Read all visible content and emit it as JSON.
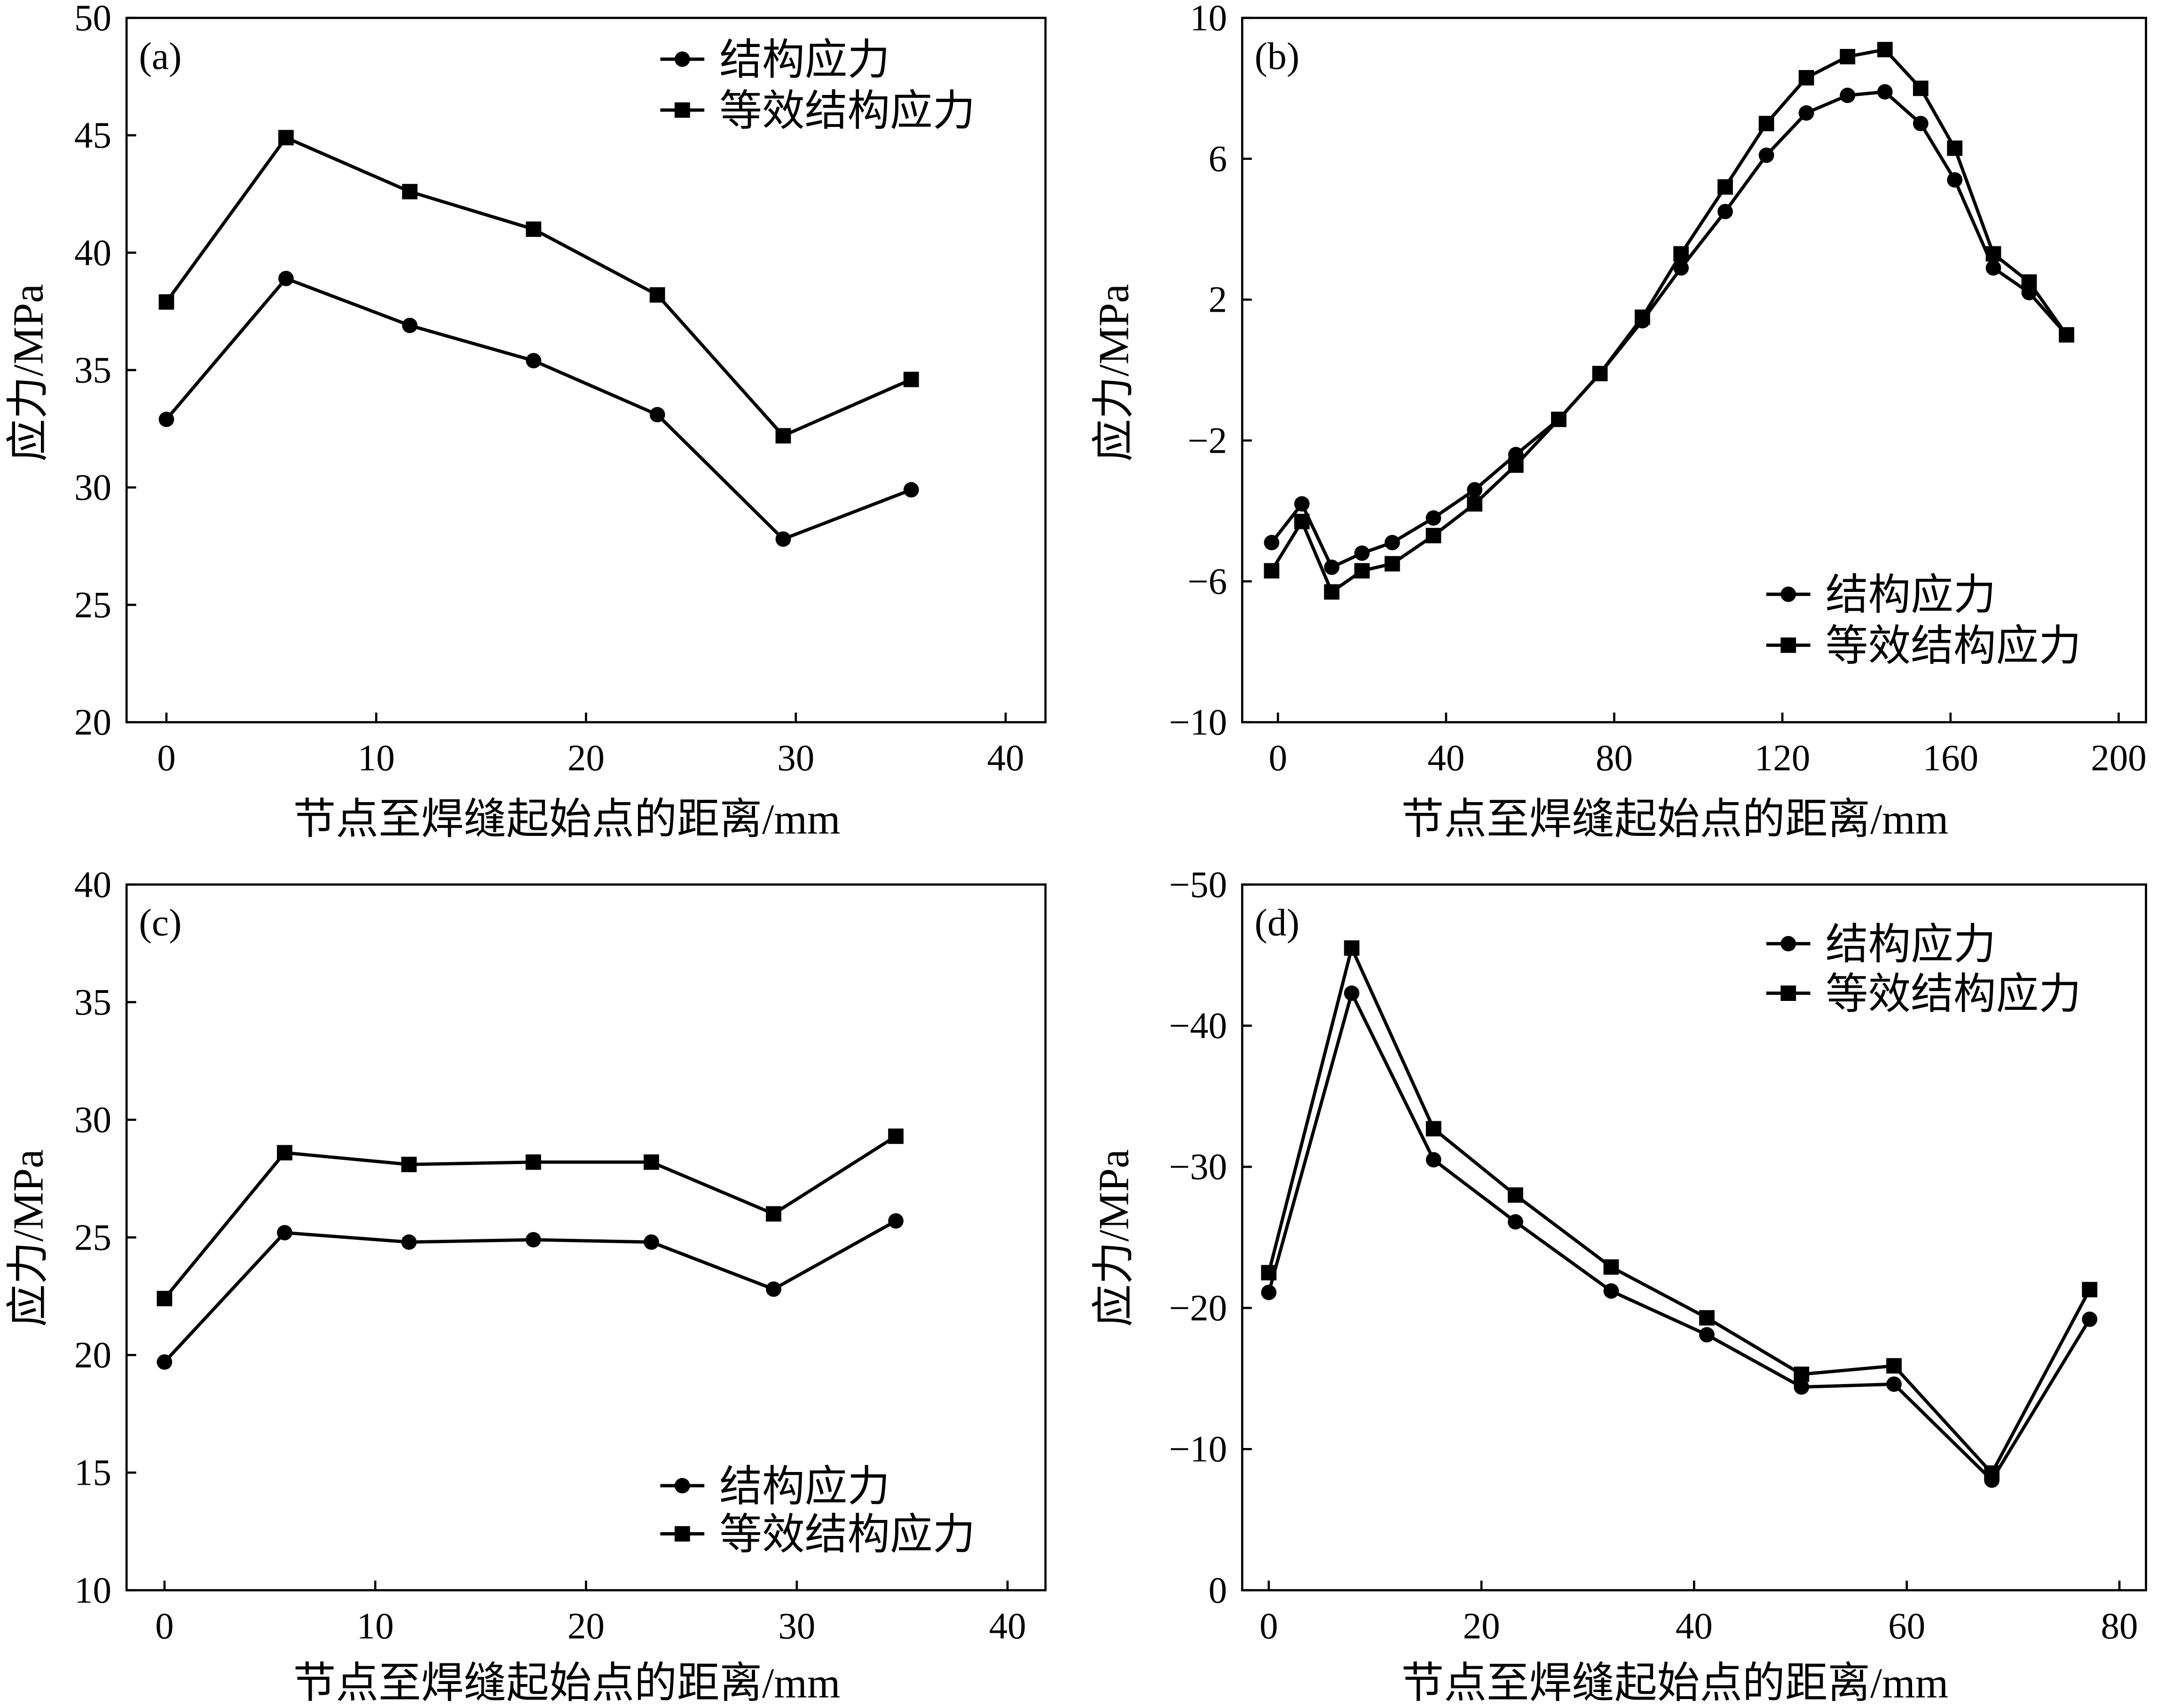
{
  "colors": {
    "ink": "#000000",
    "paper": "#ffffff"
  },
  "chart_data": [
    {
      "panel": "(a)",
      "type": "line",
      "xlabel": "节点至焊缝起始点的距离/mm",
      "ylabel": "应力/MPa",
      "xlim": [
        -1.9,
        41.9
      ],
      "ylim": [
        20,
        50
      ],
      "xticks": [
        "0",
        "10",
        "20",
        "30",
        "40"
      ],
      "yticks": [
        "20",
        "25",
        "30",
        "35",
        "40",
        "45",
        "50"
      ],
      "legend_position": "top-right",
      "x": [
        0,
        5.7,
        11.6,
        17.5,
        23.4,
        29.4,
        35.5
      ],
      "series": [
        {
          "name": "结构应力",
          "marker": "circle",
          "y": [
            32.9,
            38.9,
            36.9,
            35.4,
            33.1,
            27.8,
            29.9
          ]
        },
        {
          "name": "等效结构应力",
          "marker": "square",
          "y": [
            37.9,
            44.9,
            42.6,
            41.0,
            38.2,
            32.2,
            34.6
          ]
        }
      ]
    },
    {
      "panel": "(b)",
      "type": "line",
      "xlabel": "节点至焊缝起始点的距离/mm",
      "ylabel": "应力/MPa",
      "xlim": [
        -8.5,
        206.5
      ],
      "ylim": [
        -10,
        10
      ],
      "xticks": [
        "0",
        "40",
        "80",
        "120",
        "160",
        "200"
      ],
      "yticks": [
        "−10",
        "−6",
        "−2",
        "2",
        "6",
        "10"
      ],
      "legend_position": "bottom-right",
      "x": [
        -1.5,
        5.7,
        12.8,
        20.0,
        27.2,
        37.0,
        46.8,
        56.6,
        66.8,
        76.6,
        86.7,
        95.9,
        106.4,
        116.2,
        125.7,
        135.5,
        144.4,
        152.9,
        161.0,
        170.2,
        178.7,
        187.6
      ],
      "series": [
        {
          "name": "结构应力",
          "marker": "circle",
          "y": [
            -4.9,
            -3.8,
            -5.6,
            -5.2,
            -4.9,
            -4.2,
            -3.4,
            -2.4,
            -1.4,
            -0.1,
            1.4,
            2.9,
            4.5,
            6.1,
            7.3,
            7.8,
            7.9,
            7.0,
            5.4,
            2.9,
            2.2,
            1.0
          ]
        },
        {
          "name": "等效结构应力",
          "marker": "square",
          "y": [
            -5.7,
            -4.3,
            -6.3,
            -5.7,
            -5.5,
            -4.7,
            -3.8,
            -2.7,
            -1.4,
            -0.1,
            1.5,
            3.3,
            5.2,
            7.0,
            8.3,
            8.9,
            9.1,
            8.0,
            6.3,
            3.3,
            2.5,
            1.0
          ]
        }
      ]
    },
    {
      "panel": "(c)",
      "type": "line",
      "xlabel": "节点至焊缝起始点的距离/mm",
      "ylabel": "应力/MPa",
      "xlim": [
        -1.8,
        41.8
      ],
      "ylim": [
        10,
        40
      ],
      "xticks": [
        "0",
        "10",
        "20",
        "30",
        "40"
      ],
      "yticks": [
        "10",
        "15",
        "20",
        "25",
        "30",
        "35",
        "40"
      ],
      "legend_position": "bottom-right",
      "x": [
        0,
        5.7,
        11.6,
        17.5,
        23.1,
        28.9,
        34.7
      ],
      "series": [
        {
          "name": "结构应力",
          "marker": "circle",
          "y": [
            19.7,
            25.2,
            24.8,
            24.9,
            24.8,
            22.8,
            25.7
          ]
        },
        {
          "name": "等效结构应力",
          "marker": "square",
          "y": [
            22.4,
            28.6,
            28.1,
            28.2,
            28.2,
            26.0,
            29.3
          ]
        }
      ]
    },
    {
      "panel": "(d)",
      "type": "line",
      "xlabel": "节点至焊缝起始点的距离/mm",
      "ylabel": "应力/MPa",
      "xlim": [
        -2.5,
        82.5
      ],
      "ylim": [
        0,
        -50
      ],
      "xticks": [
        "0",
        "20",
        "40",
        "60",
        "80"
      ],
      "yticks": [
        "0",
        "−10",
        "−20",
        "−30",
        "−40",
        "−50"
      ],
      "legend_position": "top-right",
      "x": [
        0,
        7.8,
        15.5,
        23.2,
        32.2,
        41.2,
        50.1,
        58.8,
        68.0,
        77.2
      ],
      "series": [
        {
          "name": "结构应力",
          "marker": "circle",
          "y": [
            -21.1,
            -42.3,
            -30.5,
            -26.1,
            -21.2,
            -18.1,
            -14.4,
            -14.6,
            -7.8,
            -19.2
          ]
        },
        {
          "name": "等效结构应力",
          "marker": "square",
          "y": [
            -22.5,
            -45.5,
            -32.7,
            -28.0,
            -22.9,
            -19.3,
            -15.3,
            -15.9,
            -8.3,
            -21.3
          ]
        }
      ]
    }
  ]
}
